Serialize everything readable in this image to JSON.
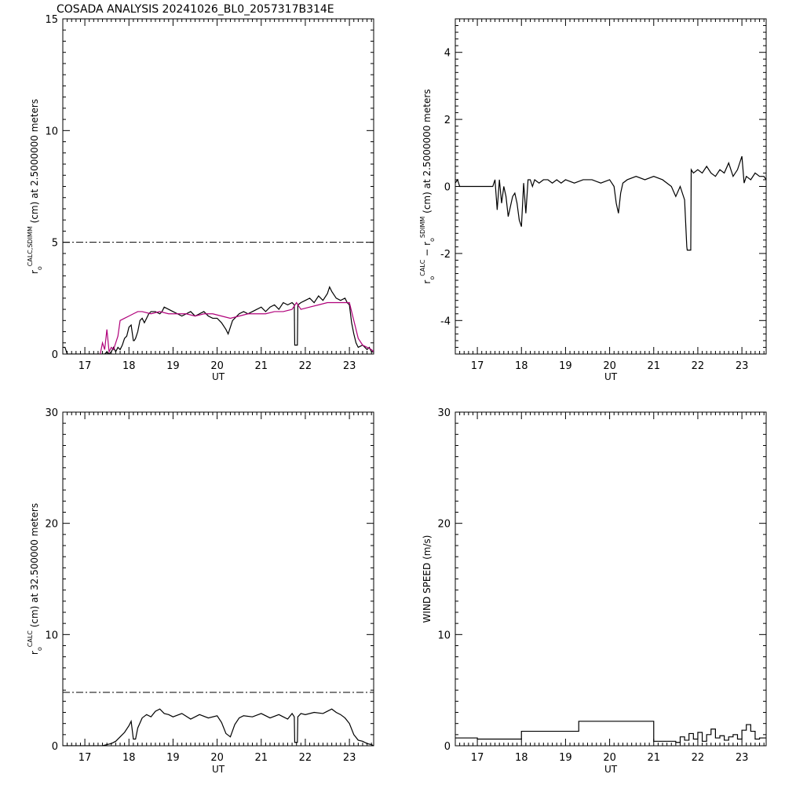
{
  "title": "COSADA ANALYSIS 20241026_BL0_2057317B314E",
  "colors": {
    "black": "#000000",
    "magenta": "#b0007a"
  },
  "chart_data": [
    {
      "id": "p1",
      "type": "line",
      "xlabel": "UT",
      "ylabel": {
        "base": "r",
        "sub": "o",
        "sup": "CALC,SDIMM",
        "rest": " (cm)  at  2.5000000 meters"
      },
      "xlim": [
        16.5,
        23.55
      ],
      "ylim": [
        0,
        15
      ],
      "xticks": [
        17,
        18,
        19,
        20,
        21,
        22,
        23
      ],
      "yticks": [
        0,
        5,
        10,
        15
      ],
      "reference_line": {
        "y": 5.0,
        "style": "dash-dot"
      },
      "series": [
        {
          "color": "#000000",
          "x": [
            16.5,
            16.55,
            16.6,
            17.3,
            17.45,
            17.5,
            17.55,
            17.6,
            17.65,
            17.7,
            17.75,
            17.8,
            17.85,
            17.9,
            17.95,
            18.0,
            18.05,
            18.1,
            18.12,
            18.15,
            18.2,
            18.25,
            18.3,
            18.35,
            18.4,
            18.45,
            18.5,
            18.6,
            18.7,
            18.75,
            18.8,
            18.9,
            19.0,
            19.1,
            19.2,
            19.3,
            19.4,
            19.5,
            19.6,
            19.7,
            19.8,
            19.9,
            20.0,
            20.1,
            20.2,
            20.25,
            20.3,
            20.35,
            20.4,
            20.5,
            20.6,
            20.7,
            20.8,
            20.9,
            21.0,
            21.1,
            21.2,
            21.3,
            21.4,
            21.5,
            21.6,
            21.7,
            21.75,
            21.76,
            21.82,
            21.83,
            21.9,
            22.0,
            22.1,
            22.2,
            22.3,
            22.4,
            22.5,
            22.55,
            22.6,
            22.7,
            22.8,
            22.9,
            22.95,
            23.0,
            23.05,
            23.1,
            23.15,
            23.2,
            23.3,
            23.4,
            23.45,
            23.5,
            23.55
          ],
          "y": [
            0.3,
            0.3,
            0.0,
            0.0,
            0.0,
            0.1,
            0.0,
            0.1,
            0.3,
            0.1,
            0.3,
            0.2,
            0.4,
            0.7,
            0.8,
            1.2,
            1.3,
            0.6,
            0.6,
            0.7,
            1.0,
            1.5,
            1.6,
            1.4,
            1.6,
            1.8,
            1.9,
            1.9,
            1.8,
            1.9,
            2.1,
            2.0,
            1.9,
            1.8,
            1.7,
            1.8,
            1.9,
            1.7,
            1.8,
            1.9,
            1.7,
            1.6,
            1.6,
            1.4,
            1.1,
            0.9,
            1.2,
            1.5,
            1.6,
            1.8,
            1.9,
            1.8,
            1.9,
            2.0,
            2.1,
            1.9,
            2.1,
            2.2,
            2.0,
            2.3,
            2.2,
            2.3,
            2.2,
            0.4,
            0.4,
            2.2,
            2.3,
            2.4,
            2.5,
            2.3,
            2.6,
            2.4,
            2.7,
            3.0,
            2.8,
            2.5,
            2.4,
            2.5,
            2.3,
            2.2,
            1.4,
            0.9,
            0.5,
            0.3,
            0.4,
            0.2,
            0.3,
            0.1,
            0.1
          ]
        },
        {
          "color": "#b0007a",
          "x": [
            17.35,
            17.4,
            17.45,
            17.5,
            17.55,
            17.6,
            17.65,
            17.7,
            17.75,
            17.8,
            17.9,
            18.0,
            18.1,
            18.2,
            18.3,
            18.5,
            18.7,
            18.9,
            19.1,
            19.3,
            19.5,
            19.7,
            19.9,
            20.1,
            20.3,
            20.5,
            20.7,
            20.9,
            21.1,
            21.3,
            21.5,
            21.7,
            21.8,
            21.9,
            22.1,
            22.3,
            22.5,
            22.7,
            22.9,
            23.0,
            23.1,
            23.2,
            23.3,
            23.4,
            23.5,
            23.55
          ],
          "y": [
            0.0,
            0.5,
            0.2,
            1.1,
            0.1,
            0.3,
            0.2,
            0.5,
            0.8,
            1.5,
            1.6,
            1.7,
            1.8,
            1.9,
            1.9,
            1.8,
            1.9,
            1.8,
            1.8,
            1.8,
            1.7,
            1.8,
            1.8,
            1.7,
            1.6,
            1.7,
            1.8,
            1.8,
            1.8,
            1.9,
            1.9,
            2.0,
            2.3,
            2.0,
            2.1,
            2.2,
            2.3,
            2.3,
            2.3,
            2.3,
            1.5,
            0.7,
            0.4,
            0.3,
            0.2,
            0.1
          ]
        }
      ]
    },
    {
      "id": "p2",
      "type": "line",
      "xlabel": "UT",
      "ylabel": {
        "base": "r",
        "sub": "o",
        "sup": "CALC",
        "mid": "  − r",
        "sub2": "o",
        "sup2": "SDIMM",
        "rest": " (cm)  at  2.5000000 meters"
      },
      "xlim": [
        16.5,
        23.55
      ],
      "ylim": [
        -5,
        5
      ],
      "xticks": [
        17,
        18,
        19,
        20,
        21,
        22,
        23
      ],
      "yticks": [
        -4,
        -2,
        0,
        2,
        4
      ],
      "series": [
        {
          "color": "#000000",
          "x": [
            16.5,
            16.55,
            16.6,
            17.35,
            17.4,
            17.45,
            17.5,
            17.55,
            17.6,
            17.65,
            17.7,
            17.75,
            17.8,
            17.85,
            17.9,
            17.95,
            18.0,
            18.05,
            18.1,
            18.15,
            18.2,
            18.25,
            18.3,
            18.4,
            18.5,
            18.6,
            18.7,
            18.8,
            18.9,
            19.0,
            19.2,
            19.4,
            19.6,
            19.8,
            20.0,
            20.1,
            20.15,
            20.2,
            20.25,
            20.3,
            20.4,
            20.6,
            20.8,
            21.0,
            21.2,
            21.3,
            21.4,
            21.5,
            21.6,
            21.7,
            21.75,
            21.76,
            21.84,
            21.85,
            21.9,
            22.0,
            22.1,
            22.2,
            22.3,
            22.4,
            22.5,
            22.6,
            22.7,
            22.8,
            22.9,
            23.0,
            23.05,
            23.1,
            23.2,
            23.3,
            23.4,
            23.5,
            23.55
          ],
          "y": [
            0.1,
            0.2,
            0.0,
            0.0,
            0.2,
            -0.7,
            0.2,
            -0.5,
            0.0,
            -0.3,
            -0.9,
            -0.6,
            -0.3,
            -0.2,
            -0.5,
            -1.0,
            -1.2,
            0.1,
            -0.8,
            0.2,
            0.2,
            0.0,
            0.2,
            0.1,
            0.2,
            0.2,
            0.1,
            0.2,
            0.1,
            0.2,
            0.1,
            0.2,
            0.2,
            0.1,
            0.2,
            0.0,
            -0.5,
            -0.8,
            -0.2,
            0.1,
            0.2,
            0.3,
            0.2,
            0.3,
            0.2,
            0.1,
            0.0,
            -0.3,
            0.0,
            -0.4,
            -1.8,
            -1.9,
            -1.9,
            0.5,
            0.4,
            0.5,
            0.4,
            0.6,
            0.4,
            0.3,
            0.5,
            0.4,
            0.7,
            0.3,
            0.5,
            0.9,
            0.1,
            0.3,
            0.2,
            0.4,
            0.3,
            0.3,
            0.2
          ]
        }
      ]
    },
    {
      "id": "p3",
      "type": "line",
      "xlabel": "UT",
      "ylabel": {
        "base": "r",
        "sub": "o",
        "sup": "CALC",
        "rest": " (cm)  at  32.500000 meters"
      },
      "xlim": [
        16.5,
        23.55
      ],
      "ylim": [
        0,
        30
      ],
      "xticks": [
        17,
        18,
        19,
        20,
        21,
        22,
        23
      ],
      "yticks": [
        0,
        10,
        20,
        30
      ],
      "reference_line": {
        "y": 4.8,
        "style": "dash-dot"
      },
      "series": [
        {
          "color": "#000000",
          "x": [
            16.5,
            17.4,
            17.5,
            17.6,
            17.7,
            17.8,
            17.9,
            18.0,
            18.05,
            18.1,
            18.15,
            18.2,
            18.3,
            18.4,
            18.5,
            18.6,
            18.7,
            18.8,
            18.9,
            19.0,
            19.2,
            19.4,
            19.6,
            19.8,
            20.0,
            20.1,
            20.2,
            20.3,
            20.4,
            20.5,
            20.6,
            20.8,
            21.0,
            21.2,
            21.4,
            21.5,
            21.6,
            21.7,
            21.75,
            21.76,
            21.82,
            21.83,
            21.9,
            22.0,
            22.2,
            22.4,
            22.5,
            22.6,
            22.7,
            22.8,
            22.9,
            23.0,
            23.1,
            23.2,
            23.3,
            23.4,
            23.5,
            23.55
          ],
          "y": [
            0.0,
            0.0,
            0.1,
            0.2,
            0.4,
            0.8,
            1.2,
            1.8,
            2.2,
            0.6,
            0.6,
            1.6,
            2.5,
            2.8,
            2.6,
            3.1,
            3.3,
            2.9,
            2.8,
            2.6,
            2.9,
            2.4,
            2.8,
            2.5,
            2.7,
            2.1,
            1.1,
            0.8,
            1.9,
            2.5,
            2.7,
            2.6,
            2.9,
            2.5,
            2.8,
            2.6,
            2.4,
            2.9,
            2.6,
            0.3,
            0.3,
            2.6,
            2.9,
            2.8,
            3.0,
            2.9,
            3.1,
            3.3,
            3.0,
            2.8,
            2.5,
            2.0,
            1.0,
            0.5,
            0.4,
            0.2,
            0.1,
            0.0
          ]
        }
      ]
    },
    {
      "id": "p4",
      "type": "line",
      "xlabel": "UT",
      "ylabel": {
        "text": "WIND SPEED (m/s)"
      },
      "xlim": [
        16.5,
        23.55
      ],
      "ylim": [
        0,
        30
      ],
      "xticks": [
        17,
        18,
        19,
        20,
        21,
        22,
        23
      ],
      "yticks": [
        0,
        10,
        20,
        30
      ],
      "series": [
        {
          "color": "#000000",
          "step": true,
          "x": [
            16.5,
            17.0,
            18.0,
            19.3,
            21.0,
            21.5,
            21.6,
            21.7,
            21.8,
            21.9,
            22.0,
            22.1,
            22.2,
            22.3,
            22.4,
            22.5,
            22.6,
            22.7,
            22.8,
            22.9,
            23.0,
            23.1,
            23.2,
            23.3,
            23.4,
            23.55
          ],
          "y": [
            0.7,
            0.6,
            1.3,
            2.2,
            0.4,
            0.3,
            0.8,
            0.5,
            1.1,
            0.6,
            1.2,
            0.4,
            1.0,
            1.5,
            0.7,
            0.9,
            0.5,
            0.8,
            1.0,
            0.6,
            1.4,
            1.9,
            1.3,
            0.6,
            0.7,
            0.7
          ]
        }
      ]
    }
  ]
}
